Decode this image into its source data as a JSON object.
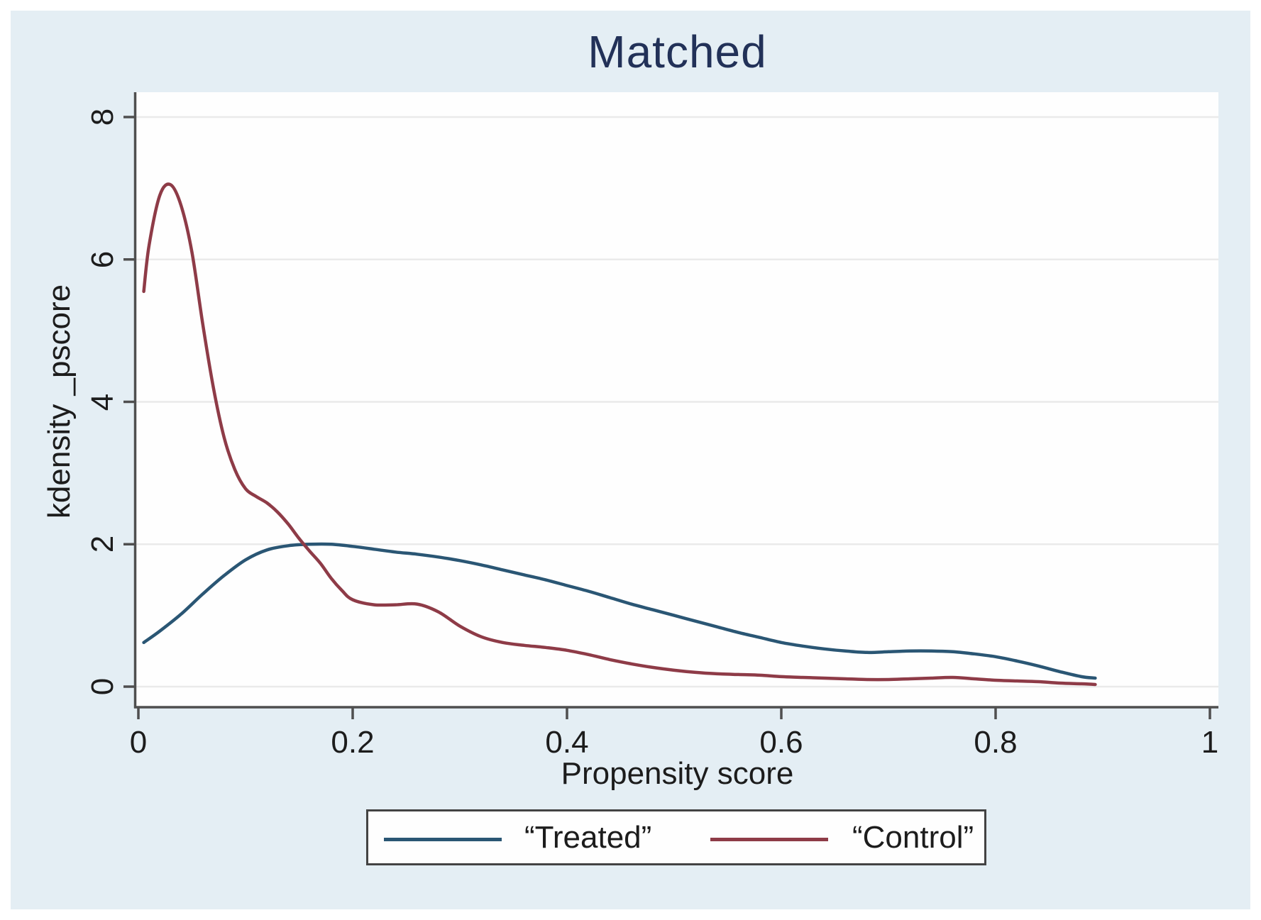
{
  "title": "Matched",
  "colors": {
    "background": "#e4eef4",
    "plot_background": "#fefefe",
    "gridline": "#eaeaea",
    "axis_line": "#4f4f4f",
    "title_text": "#223158",
    "tick_text": "#1c1c1c",
    "treated_line": "#2a5674",
    "control_line": "#8e3b47",
    "legend_border": "#434343",
    "legend_background": "#fefefe"
  },
  "chart_data": {
    "type": "line",
    "title": "Matched",
    "xlabel": "Propensity score",
    "ylabel": "kdensity _pscore",
    "xlim": [
      0,
      1
    ],
    "ylim": [
      0,
      8
    ],
    "x_ticks": [
      0,
      0.2,
      0.4,
      0.6,
      0.8,
      1
    ],
    "x_tick_labels": [
      "0",
      "0.2",
      "0.4",
      "0.6",
      "0.8",
      "1"
    ],
    "y_ticks": [
      0,
      2,
      4,
      6,
      8
    ],
    "y_tick_labels": [
      "0",
      "2",
      "4",
      "6",
      "8"
    ],
    "grid": "horizontal-only",
    "legend_position": "bottom-center",
    "series": [
      {
        "name": "“Treated”",
        "color": "#2a5674",
        "x": [
          0.005,
          0.02,
          0.04,
          0.06,
          0.08,
          0.1,
          0.12,
          0.14,
          0.16,
          0.18,
          0.2,
          0.22,
          0.24,
          0.26,
          0.28,
          0.3,
          0.32,
          0.34,
          0.36,
          0.38,
          0.4,
          0.42,
          0.44,
          0.46,
          0.48,
          0.5,
          0.52,
          0.54,
          0.56,
          0.58,
          0.6,
          0.62,
          0.64,
          0.66,
          0.68,
          0.7,
          0.72,
          0.74,
          0.76,
          0.78,
          0.8,
          0.82,
          0.84,
          0.86,
          0.88,
          0.893
        ],
        "y": [
          0.62,
          0.78,
          1.02,
          1.3,
          1.56,
          1.78,
          1.92,
          1.98,
          2.0,
          2.0,
          1.97,
          1.93,
          1.89,
          1.86,
          1.82,
          1.77,
          1.71,
          1.64,
          1.57,
          1.5,
          1.42,
          1.34,
          1.25,
          1.16,
          1.08,
          1.0,
          0.92,
          0.84,
          0.76,
          0.69,
          0.62,
          0.57,
          0.53,
          0.5,
          0.48,
          0.49,
          0.5,
          0.5,
          0.49,
          0.46,
          0.42,
          0.36,
          0.29,
          0.21,
          0.14,
          0.12
        ]
      },
      {
        "name": "“Control”",
        "color": "#8e3b47",
        "x": [
          0.005,
          0.01,
          0.02,
          0.03,
          0.04,
          0.05,
          0.06,
          0.07,
          0.08,
          0.09,
          0.1,
          0.11,
          0.12,
          0.13,
          0.14,
          0.15,
          0.16,
          0.17,
          0.18,
          0.19,
          0.2,
          0.22,
          0.24,
          0.26,
          0.28,
          0.3,
          0.32,
          0.34,
          0.36,
          0.38,
          0.4,
          0.42,
          0.44,
          0.46,
          0.48,
          0.5,
          0.52,
          0.54,
          0.56,
          0.58,
          0.6,
          0.62,
          0.64,
          0.66,
          0.68,
          0.7,
          0.72,
          0.74,
          0.76,
          0.78,
          0.8,
          0.82,
          0.84,
          0.86,
          0.88,
          0.893
        ],
        "y": [
          5.55,
          6.2,
          6.9,
          7.05,
          6.75,
          6.1,
          5.1,
          4.2,
          3.5,
          3.05,
          2.78,
          2.67,
          2.58,
          2.45,
          2.28,
          2.08,
          1.9,
          1.73,
          1.52,
          1.35,
          1.22,
          1.15,
          1.15,
          1.16,
          1.05,
          0.85,
          0.7,
          0.62,
          0.58,
          0.55,
          0.51,
          0.45,
          0.38,
          0.32,
          0.27,
          0.23,
          0.2,
          0.18,
          0.17,
          0.16,
          0.14,
          0.13,
          0.12,
          0.11,
          0.1,
          0.1,
          0.11,
          0.12,
          0.13,
          0.11,
          0.09,
          0.08,
          0.07,
          0.05,
          0.04,
          0.03
        ]
      }
    ]
  },
  "legend": {
    "items": [
      {
        "label": "“Treated”"
      },
      {
        "label": "“Control”"
      }
    ]
  }
}
